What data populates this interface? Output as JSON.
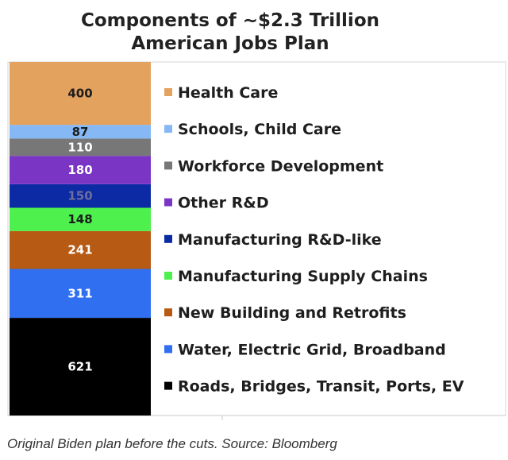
{
  "caption": "Original Biden plan before the cuts. Source: Bloomberg",
  "chart_data": {
    "type": "bar",
    "stacked": true,
    "title": "Components of ~$2.3 Trillion\nAmerican Jobs Plan",
    "xlabel": "",
    "ylabel": "",
    "legend_position": "right",
    "grid": false,
    "ylim": [
      0,
      2400
    ],
    "series": [
      {
        "name": "Roads, Bridges, Transit, Ports, EV",
        "values": [
          621
        ],
        "color": "#000000"
      },
      {
        "name": "Water, Electric Grid, Broadband",
        "values": [
          311
        ],
        "color": "#2f6ff0"
      },
      {
        "name": "New Building and Retrofits",
        "values": [
          241
        ],
        "color": "#b75a13"
      },
      {
        "name": "Manufacturing Supply Chains",
        "values": [
          148
        ],
        "color": "#4ef04e"
      },
      {
        "name": "Manufacturing R&D-like",
        "values": [
          150
        ],
        "color": "#0b2aa3"
      },
      {
        "name": "Other R&D",
        "values": [
          180
        ],
        "color": "#7a35c5"
      },
      {
        "name": "Workforce Development",
        "values": [
          110
        ],
        "color": "#777777"
      },
      {
        "name": "Schools, Child Care",
        "values": [
          87
        ],
        "color": "#86b8f5"
      },
      {
        "name": "Health Care",
        "values": [
          400
        ],
        "color": "#e4a25f"
      }
    ],
    "legend_order": [
      "Health Care",
      "Schools, Child Care",
      "Workforce Development",
      "Other R&D",
      "Manufacturing R&D-like",
      "Manufacturing Supply Chains",
      "New Building and Retrofits",
      "Water, Electric Grid, Broadband",
      "Roads, Bridges, Transit, Ports, EV"
    ]
  }
}
